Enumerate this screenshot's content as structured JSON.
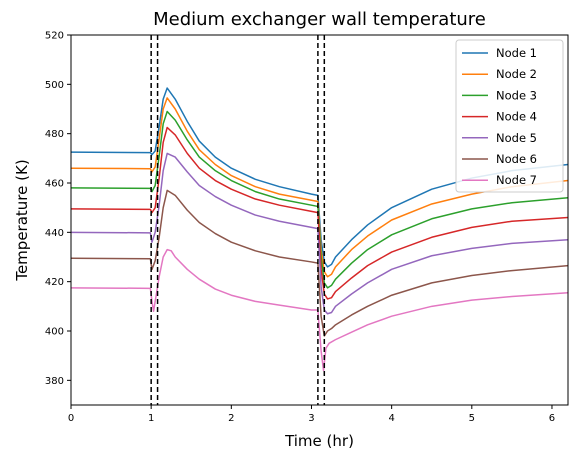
{
  "chart_data": {
    "type": "line",
    "title": "Medium exchanger wall temperature",
    "xlabel": "Time (hr)",
    "ylabel": "Temperature (K)",
    "xlim": [
      0,
      6.2
    ],
    "ylim": [
      370,
      520
    ],
    "xticks": [
      0,
      1,
      2,
      3,
      4,
      5,
      6
    ],
    "yticks": [
      380,
      400,
      420,
      440,
      460,
      480,
      500,
      520
    ],
    "grid": false,
    "legend_position": "top-right",
    "vertical_markers": [
      1.0,
      1.08,
      3.08,
      3.16
    ],
    "series": [
      {
        "name": "Node 1",
        "color": "#1f77b4",
        "x": [
          0,
          0.99,
          1.01,
          1.05,
          1.1,
          1.15,
          1.2,
          1.3,
          1.45,
          1.6,
          1.8,
          2.0,
          2.3,
          2.6,
          3.0,
          3.08,
          3.12,
          3.16,
          3.2,
          3.25,
          3.3,
          3.5,
          3.7,
          4.0,
          4.5,
          5.0,
          5.5,
          6.2
        ],
        "y": [
          472.5,
          472.3,
          471.5,
          473,
          483,
          494,
          498.5,
          494,
          485,
          477,
          470.5,
          466,
          461.5,
          458.5,
          455.5,
          455,
          437,
          428,
          426,
          427,
          430,
          437,
          443,
          450,
          457.5,
          462,
          465,
          467.5
        ]
      },
      {
        "name": "Node 2",
        "color": "#ff7f0e",
        "x": [
          0,
          0.99,
          1.01,
          1.05,
          1.1,
          1.15,
          1.2,
          1.3,
          1.45,
          1.6,
          1.8,
          2.0,
          2.3,
          2.6,
          3.0,
          3.08,
          3.12,
          3.16,
          3.2,
          3.25,
          3.3,
          3.5,
          3.7,
          4.0,
          4.5,
          5.0,
          5.5,
          6.2
        ],
        "y": [
          466,
          465.8,
          464.5,
          466.5,
          478,
          490,
          494.5,
          490,
          481,
          473.5,
          467.5,
          463,
          458.5,
          455.5,
          453,
          452.5,
          433,
          424,
          422,
          423,
          426,
          433,
          438.5,
          445,
          451.5,
          455.5,
          458.5,
          461
        ]
      },
      {
        "name": "Node 3",
        "color": "#2ca02c",
        "x": [
          0,
          0.99,
          1.01,
          1.05,
          1.1,
          1.15,
          1.2,
          1.3,
          1.45,
          1.6,
          1.8,
          2.0,
          2.3,
          2.6,
          3.0,
          3.08,
          3.12,
          3.16,
          3.2,
          3.25,
          3.3,
          3.5,
          3.7,
          4.0,
          4.5,
          5.0,
          5.5,
          6.2
        ],
        "y": [
          458,
          457.8,
          456.5,
          459,
          471,
          484,
          489,
          485.5,
          477.5,
          470.5,
          465,
          461,
          456.5,
          453.5,
          451,
          450.5,
          430,
          419.5,
          417.5,
          418.5,
          421,
          427.5,
          433,
          439,
          445.5,
          449.5,
          452,
          454
        ]
      },
      {
        "name": "Node 4",
        "color": "#d62728",
        "x": [
          0,
          0.99,
          1.01,
          1.05,
          1.1,
          1.15,
          1.2,
          1.3,
          1.45,
          1.6,
          1.8,
          2.0,
          2.3,
          2.6,
          3.0,
          3.08,
          3.12,
          3.16,
          3.2,
          3.25,
          3.3,
          3.5,
          3.7,
          4.0,
          4.5,
          5.0,
          5.5,
          6.2
        ],
        "y": [
          449.5,
          449.3,
          448,
          450,
          462,
          476.5,
          482.5,
          479.5,
          472,
          466,
          461,
          457.5,
          453.5,
          451,
          448.5,
          448,
          425,
          415,
          413,
          413.5,
          416,
          421.5,
          426.5,
          432,
          438,
          442,
          444.5,
          446
        ]
      },
      {
        "name": "Node 5",
        "color": "#9467bd",
        "x": [
          0,
          0.99,
          1.01,
          1.05,
          1.1,
          1.15,
          1.2,
          1.3,
          1.45,
          1.6,
          1.8,
          2.0,
          2.3,
          2.6,
          3.0,
          3.08,
          3.12,
          3.16,
          3.2,
          3.25,
          3.3,
          3.5,
          3.7,
          4.0,
          4.5,
          5.0,
          5.5,
          6.2
        ],
        "y": [
          440,
          439.8,
          436,
          440,
          451,
          465,
          472,
          470.5,
          464.5,
          459,
          454.5,
          451,
          447,
          444.5,
          442,
          441.5,
          418,
          408.5,
          407,
          407.5,
          410,
          415,
          419.5,
          425,
          430.5,
          433.5,
          435.5,
          437
        ]
      },
      {
        "name": "Node 6",
        "color": "#8c564b",
        "x": [
          0,
          0.99,
          1.01,
          1.05,
          1.1,
          1.15,
          1.2,
          1.3,
          1.45,
          1.6,
          1.8,
          2.0,
          2.3,
          2.6,
          3.0,
          3.08,
          3.12,
          3.16,
          3.2,
          3.25,
          3.3,
          3.5,
          3.7,
          4.0,
          4.5,
          5.0,
          5.5,
          6.2
        ],
        "y": [
          429.5,
          429.3,
          425,
          428.5,
          438,
          450,
          457,
          455,
          449,
          444,
          439.5,
          436,
          432.5,
          430,
          428,
          427.5,
          406,
          398,
          400,
          401,
          402.5,
          406.5,
          410,
          414.5,
          419.5,
          422.5,
          424.5,
          426.5
        ]
      },
      {
        "name": "Node 7",
        "color": "#e377c2",
        "x": [
          0,
          0.99,
          1.01,
          1.03,
          1.06,
          1.1,
          1.15,
          1.2,
          1.25,
          1.3,
          1.45,
          1.6,
          1.8,
          2.0,
          2.3,
          2.6,
          3.0,
          3.08,
          3.12,
          3.15,
          3.18,
          3.22,
          3.3,
          3.5,
          3.7,
          4.0,
          4.5,
          5.0,
          5.5,
          6.2
        ],
        "y": [
          417.5,
          417.3,
          412,
          408,
          414,
          422,
          430,
          433,
          432.5,
          430,
          425,
          421,
          417,
          414.5,
          412,
          410.5,
          408.5,
          408.5,
          392,
          384,
          393,
          395,
          396.5,
          399.5,
          402.5,
          406,
          410,
          412.5,
          414,
          415.5
        ]
      }
    ]
  }
}
